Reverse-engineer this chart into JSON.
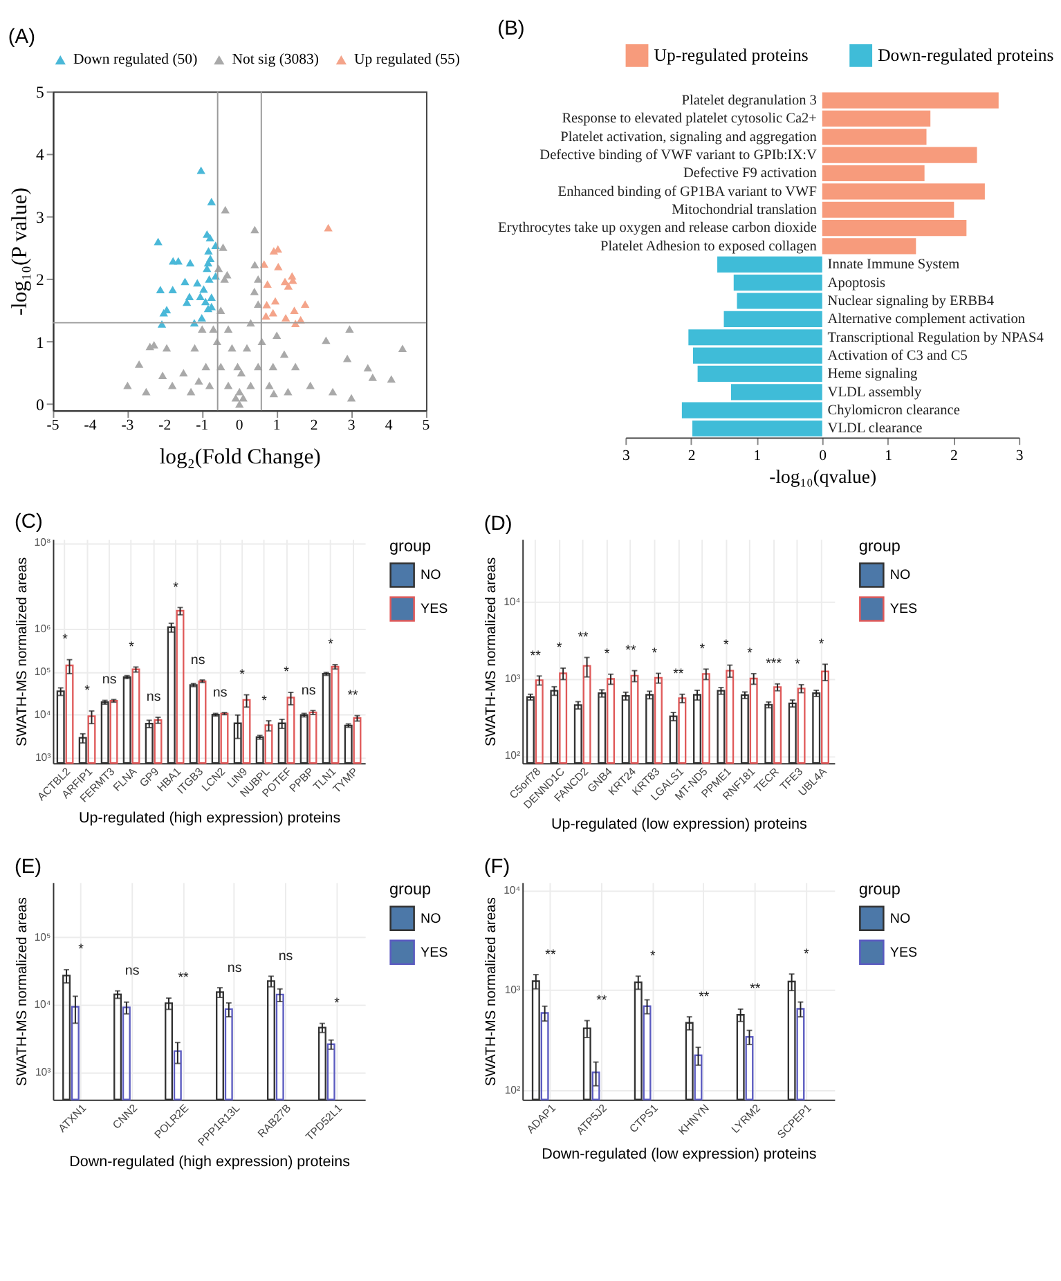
{
  "chart_data": [
    {
      "type": "scatter",
      "title": "(A)",
      "xlabel": "log₂(Fold Change)",
      "ylabel": "-log₁₀(P value)",
      "xlim": [
        -5,
        5
      ],
      "xticks": [
        -5,
        -4,
        -3,
        -2,
        -1,
        0,
        1,
        2,
        3,
        4,
        5
      ],
      "ylim": [
        -0.1,
        5
      ],
      "yticks": [
        0,
        1,
        2,
        3,
        4,
        5
      ],
      "marker": "triangle",
      "legend": "top",
      "grid": false,
      "ref_lines": [
        {
          "axis": "x",
          "value": -0.585,
          "color": "#9a9a9a"
        },
        {
          "axis": "x",
          "value": 0.585,
          "color": "#9a9a9a"
        },
        {
          "axis": "y",
          "value": 1.3,
          "color": "#9a9a9a"
        }
      ],
      "series": [
        {
          "name": "Down regulated (50)",
          "color": "#4ab8d8",
          "x": [
            -1.03,
            -0.75,
            -2.18,
            -0.87,
            -0.79,
            -0.64,
            -0.83,
            -1.78,
            -1.64,
            -1.32,
            -0.84,
            -0.78,
            -0.87,
            -0.64,
            -1.46,
            -1.13,
            -0.81,
            -2.12,
            -1.79,
            -0.96,
            -1.34,
            -1.05,
            -0.75,
            -1.41,
            -0.91,
            -0.75,
            -1.95,
            -2.03,
            -1.01,
            -0.84,
            -2.08,
            -1.21
          ],
          "values": [
            3.74,
            3.24,
            2.6,
            2.72,
            2.66,
            2.54,
            2.45,
            2.29,
            2.29,
            2.26,
            2.26,
            2.33,
            2.17,
            2.05,
            1.96,
            1.94,
            2.0,
            1.83,
            1.83,
            1.84,
            1.72,
            1.72,
            1.71,
            1.63,
            1.64,
            1.56,
            1.51,
            1.46,
            1.38,
            1.53,
            1.28,
            1.3
          ]
        },
        {
          "name": "Not sig (3083)",
          "color": "#a9a9a9",
          "x": [
            -0.38,
            0.41,
            0.41,
            -0.44,
            -0.56,
            -0.33,
            2.95,
            4.37,
            2.32,
            -2.69,
            -2.4,
            -2.29,
            -1.95,
            2.89,
            3.44,
            4.07,
            3.57,
            0.92,
            -1.09,
            -2.06,
            0,
            0.1,
            -0.1,
            -0.3,
            0.3,
            -0.5,
            0.5,
            -0.6,
            0.6,
            -0.7,
            0.5,
            -0.5,
            0.4,
            -0.4,
            -0.9,
            0.9,
            -1.2,
            1.2,
            -1.5,
            1.5,
            -1.0,
            1.0,
            -0.2,
            0.2,
            -0.8,
            0.8,
            -1.8,
            1.9,
            2.5,
            -2.5,
            0.05,
            -0.05,
            0.3,
            -0.3,
            0.5,
            1.3,
            -1.3,
            3.0,
            -3.0,
            0.0
          ],
          "values": [
            3.11,
            2.79,
            2.23,
            2.51,
            2.17,
            2.07,
            1.2,
            0.89,
            1.02,
            0.64,
            0.92,
            0.95,
            0.9,
            0.73,
            0.58,
            0.4,
            0.43,
            0.17,
            0.37,
            0.46,
            0.0,
            0.1,
            0.1,
            0.3,
            0.3,
            0.6,
            0.6,
            1.0,
            1.0,
            1.2,
            1.6,
            1.5,
            1.8,
            2.0,
            0.6,
            0.6,
            0.9,
            0.8,
            0.5,
            0.6,
            1.2,
            1.1,
            0.9,
            0.9,
            0.3,
            0.3,
            0.3,
            0.3,
            0.2,
            0.2,
            0.5,
            0.6,
            1.3,
            1.2,
            2.0,
            0.2,
            0.2,
            0.1,
            0.3,
            0.2
          ]
        },
        {
          "name": "Up regulated (55)",
          "color": "#f4a48a",
          "x": [
            2.38,
            0.66,
            1.03,
            0.92,
            1.04,
            1.41,
            1.22,
            1.43,
            1.31,
            0.75,
            1.76,
            1.47,
            0.96,
            0.73,
            0.9,
            1.24,
            1.64,
            1.5,
            0.71
          ],
          "values": [
            2.82,
            2.24,
            2.48,
            2.45,
            2.2,
            2.05,
            1.96,
            1.98,
            1.89,
            1.92,
            1.6,
            1.5,
            1.65,
            1.59,
            1.46,
            1.38,
            1.35,
            1.29,
            1.41
          ]
        }
      ]
    },
    {
      "type": "bar",
      "orientation": "horizontal",
      "title": "(B)",
      "xlabel": "-log₁₀(qvalue)",
      "xlim": [
        -3,
        3
      ],
      "xticks": [
        {
          "value": -3,
          "label": "3"
        },
        {
          "value": -2,
          "label": "2"
        },
        {
          "value": -1,
          "label": "1"
        },
        0,
        1,
        2,
        3
      ],
      "legend": "top",
      "grid": false,
      "categories": [
        "Platelet degranulation 3",
        "Response to elevated platelet cytosolic Ca2+",
        "Platelet activation, signaling and aggregation",
        "Defective binding of VWF variant to GPIb:IX:V",
        "Defective F9 activation",
        "Enhanced binding of GP1BA variant to VWF",
        "Mitochondrial translation",
        "Erythrocytes take up oxygen and release carbon dioxide",
        "Platelet Adhesion to exposed collagen",
        "Innate Immune System",
        "Apoptosis",
        "Nuclear signaling by ERBB4",
        "Alternative complement activation",
        "Transcriptional Regulation by NPAS4",
        "Activation of C3 and C5",
        "Heme signaling",
        "VLDL assembly",
        "Chylomicron clearance",
        "VLDL clearance"
      ],
      "series": [
        {
          "name": "Up-regulated proteins",
          "color": "#f79b7c",
          "values": [
            2.69,
            1.65,
            1.59,
            2.36,
            1.56,
            2.48,
            2.01,
            2.2,
            1.43,
            null,
            null,
            null,
            null,
            null,
            null,
            null,
            null,
            null,
            null
          ]
        },
        {
          "name": "Down-regulated proteins",
          "color": "#3fbcd8",
          "values": [
            null,
            null,
            null,
            null,
            null,
            null,
            null,
            null,
            null,
            -1.6,
            -1.35,
            -1.3,
            -1.5,
            -2.04,
            -1.97,
            -1.9,
            -1.39,
            -2.14,
            -1.98
          ]
        }
      ]
    },
    {
      "type": "bar",
      "title": "(C)",
      "xlabel": "Up-regulated (high expression) proteins",
      "ylabel": "SWATH-MS normalized areas",
      "legend_title": "group",
      "legend": "right",
      "log": true,
      "grid": true,
      "ylim": [
        750,
        120000000
      ],
      "yticks": [
        {
          "value": 1000,
          "label": "10³"
        },
        {
          "value": 10000,
          "label": "10⁴"
        },
        {
          "value": 100000,
          "label": "10⁵"
        },
        {
          "value": 1000000,
          "label": "10⁶"
        },
        {
          "value": 100000000,
          "label": "10⁸"
        }
      ],
      "categories": [
        "ACTBL2",
        "ARFIP1",
        "FERMT3",
        "FLNA",
        "GP9",
        "HBA1",
        "ITGB3",
        "LCN2",
        "LIN9",
        "NUBPL",
        "POTEF",
        "PPBP",
        "TLN1",
        "TYMP"
      ],
      "series": [
        {
          "name": "NO",
          "color": "#333333",
          "values": [
            35000,
            2900,
            19500,
            75000,
            6200,
            1080000,
            49000,
            10000,
            6300,
            3000,
            6300,
            9800,
            89000,
            5600
          ],
          "errors": [
            7000,
            700,
            2000,
            6000,
            1200,
            250000,
            4000,
            700,
            3500,
            300,
            1500,
            900,
            7000,
            500
          ]
        },
        {
          "name": "YES",
          "color": "#e05a5a",
          "values": [
            140000,
            9200,
            21000,
            113000,
            7500,
            2600000,
            60000,
            10600,
            22000,
            5700,
            25000,
            11300,
            130000,
            8300
          ],
          "errors": [
            50000,
            3000,
            1500,
            15000,
            1200,
            500000,
            4000,
            600,
            7000,
            1500,
            8000,
            1200,
            15000,
            1200
          ]
        }
      ],
      "annotations": [
        "*",
        "*",
        "ns",
        "*",
        "ns",
        "*",
        "ns",
        "ns",
        "*",
        "*",
        "*",
        "ns",
        "*",
        "**"
      ]
    },
    {
      "type": "bar",
      "title": "(D)",
      "xlabel": "Up-regulated (low expression) proteins",
      "ylabel": "SWATH-MS normalized areas",
      "legend_title": "group",
      "legend": "right",
      "log": true,
      "grid": true,
      "ylim": [
        80,
        66000
      ],
      "yticks": [
        {
          "value": 100,
          "label": "10²"
        },
        {
          "value": 1000,
          "label": "10³"
        },
        {
          "value": 10000,
          "label": "10⁴"
        }
      ],
      "categories": [
        "C5orf78",
        "DENND1C",
        "FANCD2",
        "GNB4",
        "KRT24",
        "KRT83",
        "LGALS1",
        "MT-ND5",
        "PPME1",
        "RNF181",
        "TECR",
        "TFE3",
        "UBL4A"
      ],
      "series": [
        {
          "name": "NO",
          "color": "#333333",
          "values": [
            580,
            700,
            455,
            650,
            600,
            620,
            325,
            620,
            700,
            615,
            460,
            480,
            650
          ],
          "errors": [
            50,
            90,
            50,
            70,
            70,
            70,
            40,
            90,
            70,
            60,
            40,
            50,
            60
          ]
        },
        {
          "name": "YES",
          "color": "#e05a5a",
          "values": [
            960,
            1180,
            1480,
            1000,
            1100,
            1030,
            560,
            1160,
            1280,
            1010,
            780,
            750,
            1250
          ],
          "errors": [
            130,
            200,
            420,
            150,
            180,
            150,
            70,
            180,
            230,
            160,
            80,
            90,
            300
          ]
        }
      ],
      "annotations": [
        "**",
        "*",
        "**",
        "*",
        "**",
        "*",
        "**",
        "*",
        "*",
        "*",
        "***",
        "*",
        "*"
      ]
    },
    {
      "type": "bar",
      "title": "(E)",
      "xlabel": "Down-regulated (high expression) proteins",
      "ylabel": "SWATH-MS normalized areas",
      "legend_title": "group",
      "legend": "right",
      "log": true,
      "grid": true,
      "ylim": [
        390,
        650000
      ],
      "yticks": [
        {
          "value": 1000,
          "label": "10³"
        },
        {
          "value": 10000,
          "label": "10⁴"
        },
        {
          "value": 100000,
          "label": "10⁵"
        }
      ],
      "categories": [
        "ATXN1",
        "CNN2",
        "POLR2E",
        "PPP1R13L",
        "RAB27B",
        "TPD52L1"
      ],
      "series": [
        {
          "name": "NO",
          "color": "#333333",
          "values": [
            27000,
            14200,
            10500,
            15300,
            22400,
            4560
          ],
          "errors": [
            6000,
            1800,
            2000,
            2500,
            4000,
            700
          ]
        },
        {
          "name": "YES",
          "color": "#5b5bc0",
          "values": [
            9300,
            9100,
            2040,
            8600,
            14100,
            2580
          ],
          "errors": [
            4000,
            1800,
            700,
            2000,
            3000,
            400
          ]
        }
      ],
      "annotations": [
        "*",
        "ns",
        "**",
        "ns",
        "ns",
        "*"
      ]
    },
    {
      "type": "bar",
      "title": "(F)",
      "xlabel": "Down-regulated (low expression) proteins",
      "ylabel": "SWATH-MS normalized areas",
      "legend_title": "group",
      "legend": "right",
      "log": true,
      "grid": true,
      "ylim": [
        80,
        12000
      ],
      "yticks": [
        {
          "value": 100,
          "label": "10²"
        },
        {
          "value": 1000,
          "label": "10³"
        },
        {
          "value": 10000,
          "label": "10⁴"
        }
      ],
      "categories": [
        "ADAP1",
        "ATP5J2",
        "CTPS1",
        "KHNYN",
        "LYRM2",
        "SCPEP1"
      ],
      "series": [
        {
          "name": "NO",
          "color": "#333333",
          "values": [
            1230,
            415,
            1200,
            470,
            565,
            1220
          ],
          "errors": [
            200,
            80,
            180,
            70,
            80,
            230
          ]
        },
        {
          "name": "YES",
          "color": "#5b5bc0",
          "values": [
            590,
            150,
            690,
            222,
            340,
            650
          ],
          "errors": [
            100,
            40,
            110,
            45,
            55,
            110
          ]
        }
      ],
      "annotations": [
        "**",
        "**",
        "*",
        "**",
        "**",
        "*"
      ]
    }
  ]
}
